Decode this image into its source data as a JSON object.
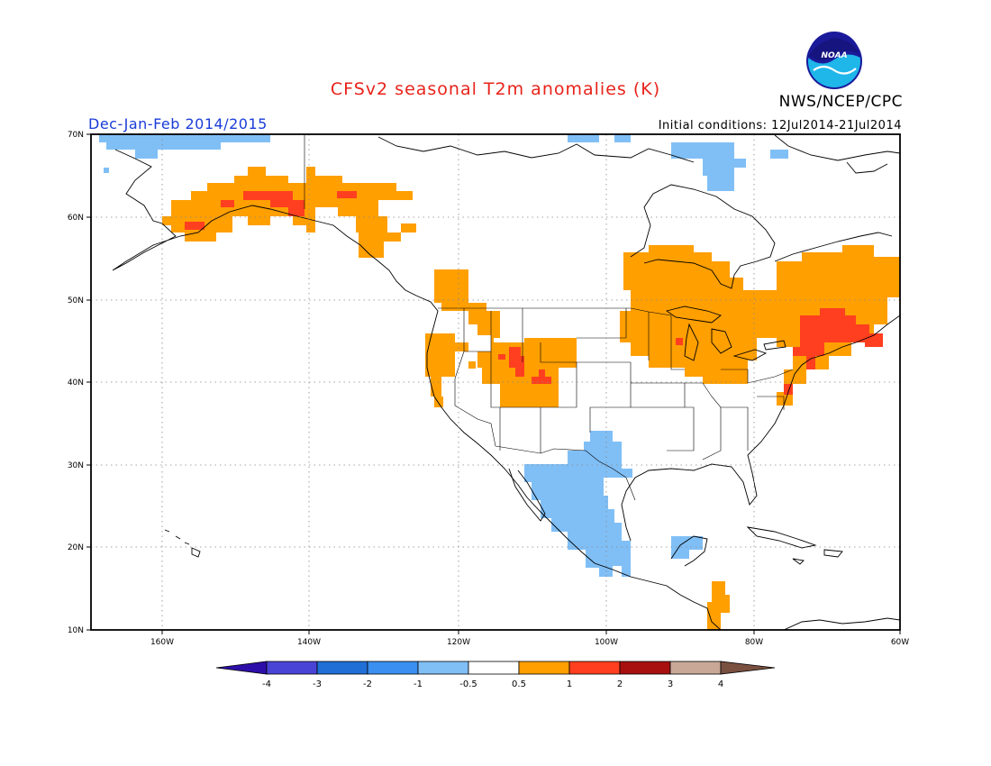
{
  "header": {
    "title": "CFSv2 seasonal T2m anomalies (K)",
    "agency": "NWS/NCEP/CPC",
    "season": "Dec-Jan-Feb 2014/2015",
    "initial_conditions": "Initial conditions: 12Jul2014-21Jul2014",
    "logo_text": "NOAA"
  },
  "map": {
    "projection": "lat-lon",
    "lon_range": [
      -172,
      -60
    ],
    "lat_range": [
      10,
      70
    ],
    "lon_ticks": [
      {
        "value": -160,
        "label": "160W"
      },
      {
        "value": -140,
        "label": "140W"
      },
      {
        "value": -120,
        "label": "120W"
      },
      {
        "value": -100,
        "label": "100W"
      },
      {
        "value": -80,
        "label": "80W"
      },
      {
        "value": -60,
        "label": "60W"
      }
    ],
    "lat_ticks": [
      {
        "value": 10,
        "label": "10N"
      },
      {
        "value": 20,
        "label": "20N"
      },
      {
        "value": 30,
        "label": "30N"
      },
      {
        "value": 40,
        "label": "40N"
      },
      {
        "value": 50,
        "label": "50N"
      },
      {
        "value": 60,
        "label": "60N"
      },
      {
        "value": 70,
        "label": "70N"
      }
    ],
    "grid": "dotted",
    "anomaly_regions": [
      {
        "name": "Alaska warm",
        "level": "0.5-1",
        "lon": [
          -158,
          -128
        ],
        "lat": [
          58,
          65
        ]
      },
      {
        "name": "Alaska core",
        "level": "1-2",
        "lon": [
          -150,
          -138
        ],
        "lat": [
          61,
          64
        ]
      },
      {
        "name": "Pacific NW / Rockies warm",
        "level": "0.5-1",
        "lon": [
          -125,
          -104
        ],
        "lat": [
          38,
          53
        ]
      },
      {
        "name": "Northern Rockies core",
        "level": "1-2",
        "lon": [
          -113,
          -110
        ],
        "lat": [
          41,
          44
        ]
      },
      {
        "name": "Great Lakes / Ontario warm",
        "level": "0.5-1",
        "lon": [
          -98,
          -80
        ],
        "lat": [
          41,
          56
        ]
      },
      {
        "name": "Quebec warm",
        "level": "0.5-1",
        "lon": [
          -80,
          -60
        ],
        "lat": [
          39,
          55
        ]
      },
      {
        "name": "New England core",
        "level": "1-2",
        "lon": [
          -74,
          -62
        ],
        "lat": [
          43,
          49
        ]
      },
      {
        "name": "Central America warm",
        "level": "0.5-1",
        "lon": [
          -86,
          -83
        ],
        "lat": [
          10,
          15
        ]
      },
      {
        "name": "Mexico / Texas cool",
        "level": "-1 to -0.5",
        "lon": [
          -115,
          -97
        ],
        "lat": [
          16,
          34
        ]
      },
      {
        "name": "Arctic cool",
        "level": "-1 to -0.5",
        "lon": [
          -170,
          -150
        ],
        "lat": [
          68,
          70
        ]
      },
      {
        "name": "Baffin cool",
        "level": "-1 to -0.5",
        "lon": [
          -87,
          -80
        ],
        "lat": [
          64,
          70
        ]
      }
    ]
  },
  "colorbar": {
    "labels": [
      "-4",
      "-3",
      "-2",
      "-1",
      "-0.5",
      "0.5",
      "1",
      "2",
      "3",
      "4"
    ],
    "colors": [
      "#2e0ea8",
      "#4a44d6",
      "#1f6fd6",
      "#3a8ff0",
      "#80bff6",
      "#ffffff",
      "#ff9f00",
      "#ff3f1f",
      "#a81010",
      "#c9a898",
      "#7a5040"
    ]
  }
}
